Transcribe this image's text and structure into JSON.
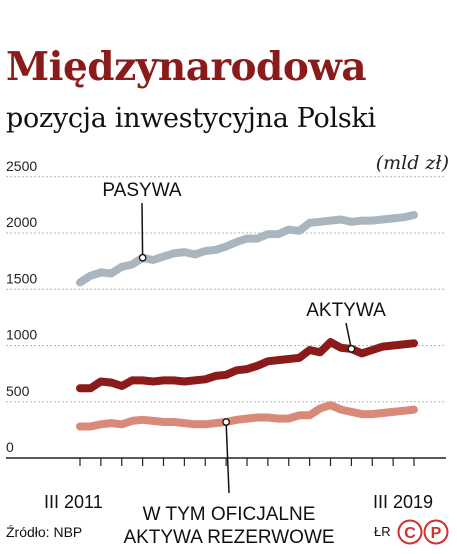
{
  "header": {
    "title": "Międzynarodowa",
    "subtitle": "pozycja inwestycyjna Polski",
    "unit": "(mld zł)"
  },
  "colors": {
    "title": "#8b1a1a",
    "pasywa": "#a9b6bf",
    "aktywa": "#8b1a1a",
    "rezerwy": "#d98978",
    "grid": "#b5b5b5",
    "axis": "#222222",
    "logo": "#d32f2f"
  },
  "chart_data": {
    "type": "line",
    "ylim": [
      0,
      2500
    ],
    "yticks": [
      0,
      500,
      1000,
      1500,
      2000,
      2500
    ],
    "x_start_label": "III 2011",
    "x_end_label": "III 2019",
    "x_quarters": 33,
    "grid": true,
    "series": [
      {
        "name": "PASYWA",
        "values": [
          1560,
          1620,
          1650,
          1640,
          1700,
          1720,
          1780,
          1760,
          1790,
          1820,
          1830,
          1810,
          1840,
          1850,
          1880,
          1920,
          1950,
          1950,
          1990,
          1990,
          2030,
          2020,
          2090,
          2100,
          2110,
          2120,
          2100,
          2110,
          2110,
          2120,
          2130,
          2140,
          2160
        ]
      },
      {
        "name": "AKTYWA",
        "values": [
          620,
          620,
          680,
          670,
          640,
          690,
          690,
          680,
          690,
          690,
          680,
          690,
          700,
          730,
          740,
          780,
          790,
          820,
          860,
          870,
          880,
          890,
          960,
          940,
          1030,
          980,
          970,
          930,
          960,
          990,
          1000,
          1010,
          1020
        ]
      },
      {
        "name": "W TYM OFICJALNE AKTYWA REZERWOWE",
        "values": [
          280,
          280,
          300,
          310,
          300,
          330,
          340,
          330,
          320,
          320,
          310,
          300,
          300,
          310,
          320,
          340,
          350,
          360,
          360,
          350,
          350,
          380,
          380,
          440,
          470,
          430,
          410,
          390,
          390,
          400,
          410,
          420,
          430
        ]
      }
    ]
  },
  "footer": {
    "source": "Źródło: NBP",
    "author": "ŁR",
    "logo_letters": [
      "C",
      "P"
    ]
  }
}
